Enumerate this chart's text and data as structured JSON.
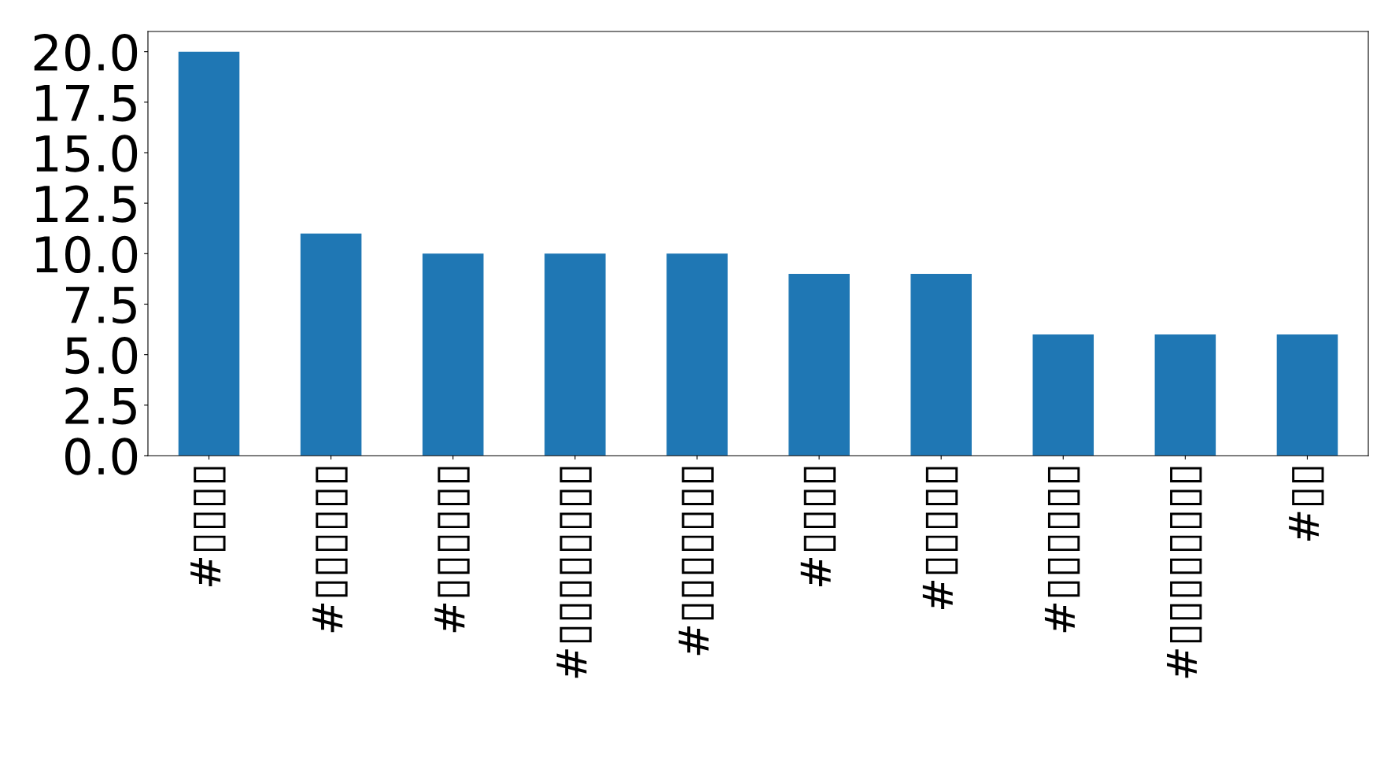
{
  "chart_data": {
    "type": "bar",
    "categories": [
      "#▯▯▯▯",
      "#▯▯▯▯▯▯",
      "#▯▯▯▯▯▯",
      "#▯▯▯▯▯▯▯▯",
      "#▯▯▯▯▯▯▯",
      "#▯▯▯▯",
      "#▯▯▯▯▯",
      "#▯▯▯▯▯▯",
      "#▯▯▯▯▯▯▯▯",
      "#▯▯"
    ],
    "values": [
      20,
      11,
      10,
      10,
      10,
      9,
      9,
      6,
      6,
      6
    ],
    "color": "#1f77b4",
    "ylim": [
      0,
      21
    ],
    "yticks": [
      {
        "value": 0,
        "label": "0.0"
      },
      {
        "value": 2.5,
        "label": "2.5"
      },
      {
        "value": 5,
        "label": "5.0"
      },
      {
        "value": 7.5,
        "label": "7.5"
      },
      {
        "value": 10,
        "label": "10.0"
      },
      {
        "value": 12.5,
        "label": "12.5"
      },
      {
        "value": 15,
        "label": "15.0"
      },
      {
        "value": 17.5,
        "label": "17.5"
      },
      {
        "value": 20,
        "label": "20.0"
      }
    ],
    "grid": false,
    "legend": false
  }
}
